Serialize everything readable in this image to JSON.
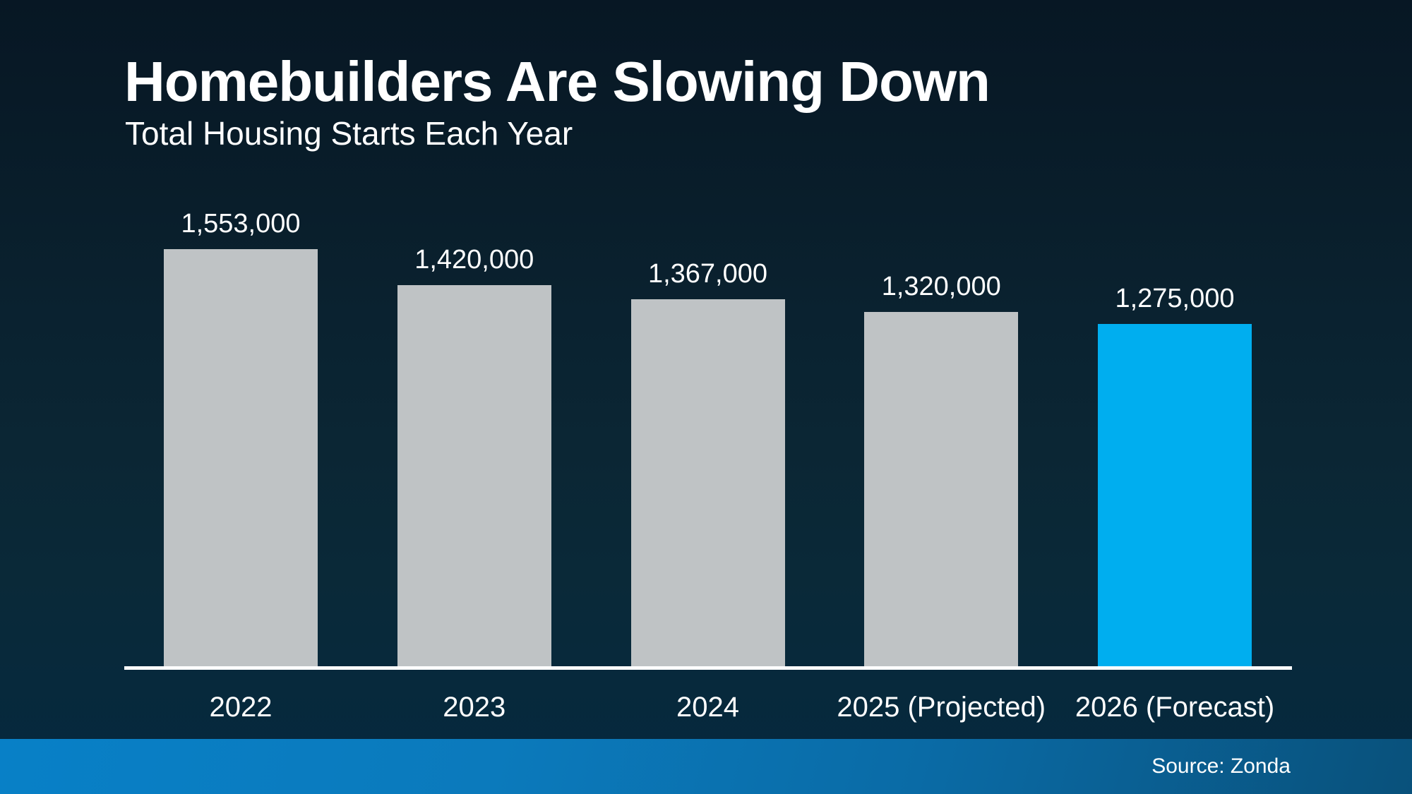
{
  "header": {
    "title": "Homebuilders Are Slowing Down",
    "subtitle": "Total Housing Starts Each Year"
  },
  "footer": {
    "source": "Source: Zonda"
  },
  "chart_data": {
    "type": "bar",
    "title": "Homebuilders Are Slowing Down",
    "subtitle": "Total Housing Starts Each Year",
    "categories": [
      "2022",
      "2023",
      "2024",
      "2025 (Projected)",
      "2026 (Forecast)"
    ],
    "values": [
      1553000,
      1420000,
      1367000,
      1320000,
      1275000
    ],
    "value_labels": [
      "1,553,000",
      "1,420,000",
      "1,367,000",
      "1,320,000",
      "1,275,000"
    ],
    "bar_colors": [
      "#bfc3c5",
      "#bfc3c5",
      "#bfc3c5",
      "#bfc3c5",
      "#00aeef"
    ],
    "xlabel": "",
    "ylabel": "",
    "ylim": [
      0,
      1553000
    ],
    "grid": false,
    "legend": false,
    "baseline_axis_color": "#ffffff",
    "colors": {
      "default_bar": "#bfc3c5",
      "highlight_bar": "#00aeef",
      "background_top": "#071724",
      "background_bottom": "#05283e",
      "footer_left": "#0880c7",
      "footer_right": "#09517b",
      "text": "#ffffff"
    },
    "source": "Source: Zonda"
  }
}
